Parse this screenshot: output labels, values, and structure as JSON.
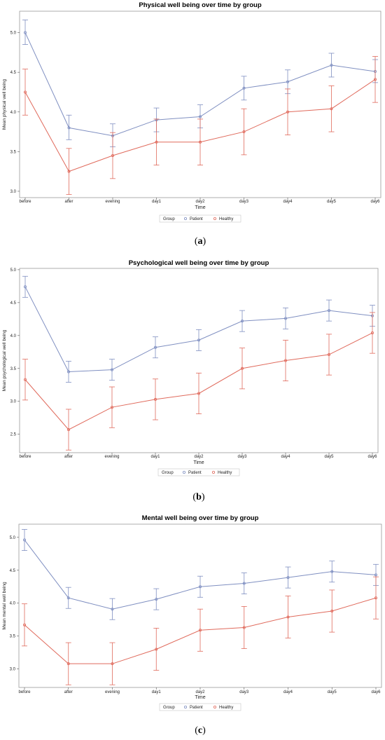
{
  "colors": {
    "patient": "#7f8fc1",
    "healthy": "#e06a5c",
    "frame": "#9a9a9a"
  },
  "chart_data": [
    {
      "type": "line",
      "title": "Physical well being over time by group",
      "xlabel": "Time",
      "ylabel": "Mean physical well being",
      "categories": [
        "before",
        "after",
        "evening",
        "day1",
        "day2",
        "day3",
        "day4",
        "day5",
        "day6"
      ],
      "ylim": [
        2.92,
        5.27
      ],
      "yticks": [
        3.0,
        3.5,
        4.0,
        4.5,
        5.0
      ],
      "yticklabels": [
        "3.0",
        "3.5",
        "4.0",
        "4.5",
        "5.0"
      ],
      "legend_title": "Group",
      "legend_placement": "bottom",
      "panel_label": "a",
      "series": [
        {
          "name": "Patient",
          "values": [
            5.0,
            3.8,
            3.7,
            3.9,
            3.94,
            4.3,
            4.38,
            4.59,
            4.51
          ],
          "lower": [
            4.85,
            3.65,
            3.56,
            3.75,
            3.8,
            4.15,
            4.23,
            4.44,
            4.37
          ],
          "upper": [
            5.16,
            3.96,
            3.85,
            4.05,
            4.09,
            4.45,
            4.53,
            4.74,
            4.66
          ]
        },
        {
          "name": "Healthy",
          "values": [
            4.25,
            3.25,
            3.45,
            3.62,
            3.62,
            3.75,
            4.0,
            4.04,
            4.41
          ],
          "lower": [
            3.96,
            2.96,
            3.16,
            3.33,
            3.33,
            3.46,
            3.71,
            3.75,
            4.12
          ],
          "upper": [
            4.54,
            3.54,
            3.74,
            3.91,
            3.91,
            4.04,
            4.29,
            4.33,
            4.7
          ]
        }
      ]
    },
    {
      "type": "line",
      "title": "Psychological well being over time by group",
      "xlabel": "Time",
      "ylabel": "Mean psychological well being",
      "categories": [
        "before",
        "after",
        "evening",
        "day1",
        "day2",
        "day3",
        "day4",
        "day5",
        "day6"
      ],
      "ylim": [
        2.22,
        5.02
      ],
      "yticks": [
        2.5,
        3.0,
        3.5,
        4.0,
        4.5,
        5.0
      ],
      "yticklabels": [
        "2.5",
        "3.0",
        "3.5",
        "4.0",
        "4.5",
        "5.0"
      ],
      "legend_title": "Group",
      "legend_placement": "bottom",
      "panel_label": "b",
      "series": [
        {
          "name": "Patient",
          "values": [
            4.74,
            3.45,
            3.48,
            3.82,
            3.93,
            4.22,
            4.26,
            4.38,
            4.3
          ],
          "lower": [
            4.58,
            3.29,
            3.32,
            3.66,
            3.77,
            4.06,
            4.1,
            4.22,
            4.14
          ],
          "upper": [
            4.9,
            3.61,
            3.64,
            3.98,
            4.09,
            4.38,
            4.42,
            4.54,
            4.46
          ]
        },
        {
          "name": "Healthy",
          "values": [
            3.33,
            2.57,
            2.91,
            3.03,
            3.12,
            3.5,
            3.62,
            3.71,
            4.04
          ],
          "lower": [
            3.02,
            2.26,
            2.6,
            2.72,
            2.81,
            3.19,
            3.31,
            3.4,
            3.73
          ],
          "upper": [
            3.64,
            2.88,
            3.22,
            3.34,
            3.43,
            3.81,
            3.93,
            4.02,
            4.35
          ]
        }
      ]
    },
    {
      "type": "line",
      "title": "Mental well being over time by group",
      "xlabel": "Time",
      "ylabel": "Mean mental well being",
      "categories": [
        "before",
        "after",
        "evening",
        "day1",
        "day2",
        "day3",
        "day4",
        "day5",
        "day6"
      ],
      "ylim": [
        2.72,
        5.2
      ],
      "yticks": [
        3.0,
        3.5,
        4.0,
        4.5,
        5.0
      ],
      "yticklabels": [
        "3.0",
        "3.5",
        "4.0",
        "4.5",
        "5.0"
      ],
      "legend_title": "Group",
      "legend_placement": "bottom",
      "panel_label": "c",
      "series": [
        {
          "name": "Patient",
          "values": [
            4.96,
            4.08,
            3.91,
            4.06,
            4.25,
            4.3,
            4.39,
            4.48,
            4.43
          ],
          "lower": [
            4.8,
            3.92,
            3.75,
            3.9,
            4.09,
            4.14,
            4.23,
            4.32,
            4.27
          ],
          "upper": [
            5.12,
            4.24,
            4.07,
            4.22,
            4.41,
            4.46,
            4.55,
            4.64,
            4.59
          ]
        },
        {
          "name": "Healthy",
          "values": [
            3.67,
            3.08,
            3.08,
            3.3,
            3.59,
            3.63,
            3.79,
            3.88,
            4.08
          ],
          "lower": [
            3.35,
            2.76,
            2.76,
            2.98,
            3.27,
            3.31,
            3.47,
            3.56,
            3.76
          ],
          "upper": [
            3.99,
            3.4,
            3.4,
            3.62,
            3.91,
            3.95,
            4.11,
            4.2,
            4.4
          ]
        }
      ]
    }
  ]
}
